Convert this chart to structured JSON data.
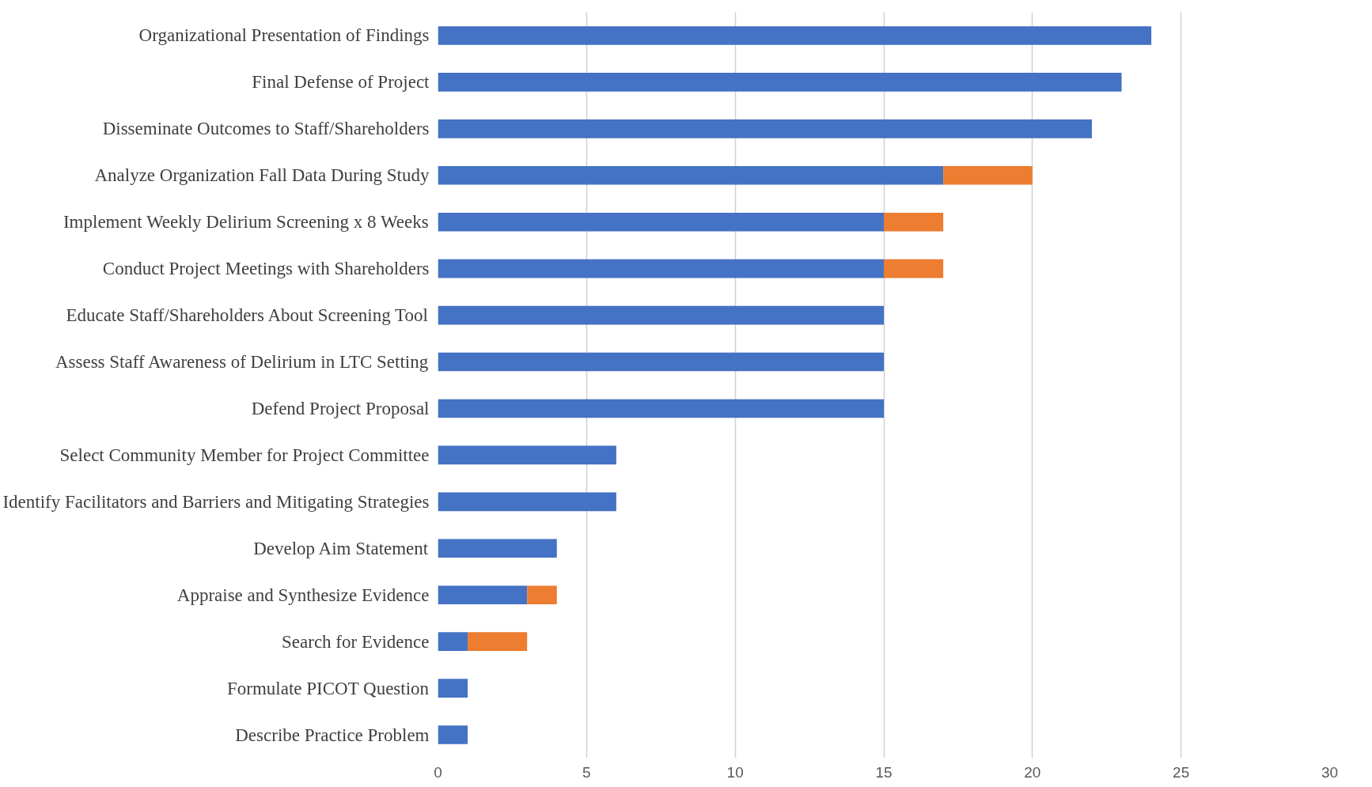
{
  "chart_data": {
    "type": "bar",
    "orientation": "horizontal",
    "stacked": true,
    "categories": [
      "Organizational Presentation of Findings",
      "Final Defense of Project",
      "Disseminate Outcomes to Staff/Shareholders",
      "Analyze Organization Fall Data During Study",
      "Implement Weekly Delirium Screening x 8 Weeks",
      "Conduct Project Meetings with Shareholders",
      "Educate Staff/Shareholders About Screening Tool",
      "Assess Staff Awareness of Delirium in LTC Setting",
      "Defend Project Proposal",
      "Select Community Member for Project Committee",
      "Identify Facilitators and Barriers and Mitigating Strategies",
      "Develop Aim Statement",
      "Appraise and Synthesize Evidence",
      "Search for Evidence",
      "Formulate PICOT Question",
      "Describe Practice Problem"
    ],
    "series": [
      {
        "color": "#4472c4",
        "values": [
          24,
          23,
          22,
          17,
          15,
          15,
          15,
          15,
          15,
          6,
          6,
          4,
          3,
          1,
          1,
          1
        ]
      },
      {
        "color": "#ed7d31",
        "values": [
          null,
          null,
          null,
          3,
          2,
          2,
          null,
          null,
          null,
          null,
          null,
          null,
          1,
          2,
          null,
          null
        ]
      }
    ],
    "xlim": [
      0,
      30
    ],
    "xticks": [
      0,
      5,
      10,
      15,
      20,
      25,
      30
    ],
    "grid": "x"
  }
}
